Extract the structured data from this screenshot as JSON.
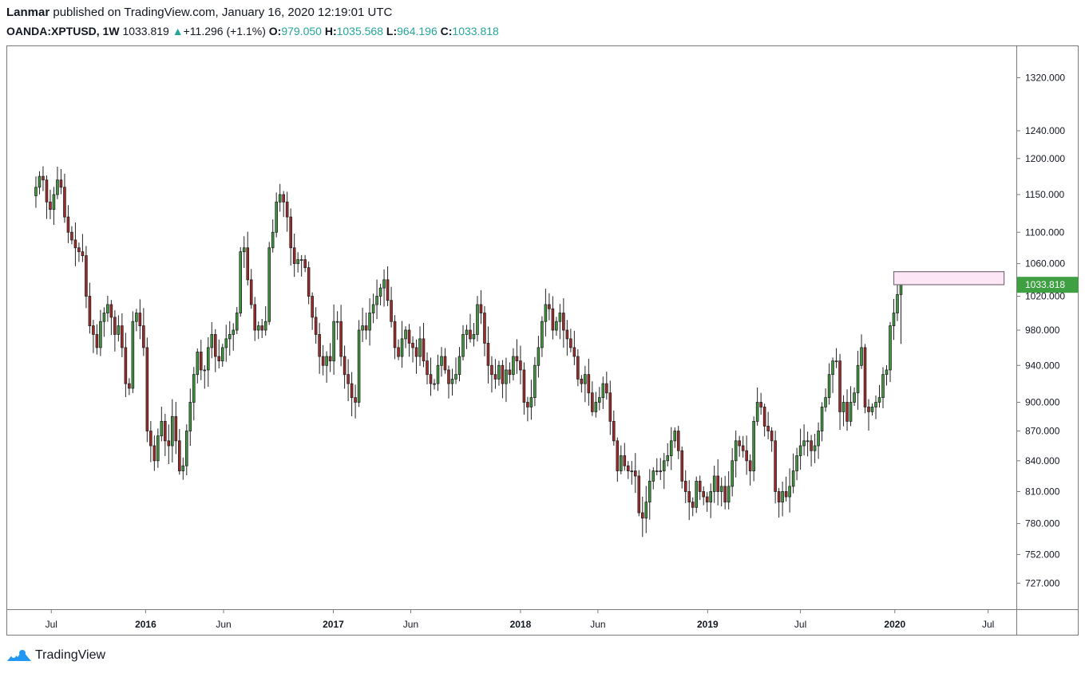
{
  "header": {
    "author": "Lanmar",
    "published_text": "published on TradingView.com, January 16, 2020 12:19:01 UTC",
    "symbol": "OANDA:XPTUSD, 1W",
    "last": "1033.819",
    "change": "+11.296 (+1.1%)",
    "open_label": "O:",
    "open": "979.050",
    "high_label": "H:",
    "high": "1035.568",
    "low_label": "L:",
    "low": "964.196",
    "close_label": "C:",
    "close": "1033.818"
  },
  "footer": {
    "brand": "TradingView"
  },
  "colors": {
    "up": "#26a69a",
    "candle_up": "#3f9a3f",
    "candle_down": "#a62a2a",
    "price_tag": "#3ea043",
    "zone_fill": "#fde7f7",
    "zone_stroke": "#7b6b7b"
  },
  "chart_data": {
    "type": "candlestick",
    "symbol": "OANDA:XPTUSD",
    "interval": "1W",
    "y_scale": "log",
    "ylim": [
      705,
      1370
    ],
    "y_ticks": [
      "1320.000",
      "1240.000",
      "1200.000",
      "1150.000",
      "1100.000",
      "1060.000",
      "1020.000",
      "980.000",
      "940.000",
      "900.000",
      "870.000",
      "840.000",
      "810.000",
      "780.000",
      "752.000",
      "727.000"
    ],
    "x_ticks": [
      {
        "label": "Jul",
        "date": "2015-07-01",
        "year": false
      },
      {
        "label": "2016",
        "date": "2016-01-01",
        "year": true
      },
      {
        "label": "Jun",
        "date": "2016-06-01",
        "year": false
      },
      {
        "label": "2017",
        "date": "2017-01-01",
        "year": true
      },
      {
        "label": "Jun",
        "date": "2017-06-01",
        "year": false
      },
      {
        "label": "2018",
        "date": "2018-01-01",
        "year": true
      },
      {
        "label": "Jun",
        "date": "2018-06-01",
        "year": false
      },
      {
        "label": "2019",
        "date": "2019-01-01",
        "year": true
      },
      {
        "label": "Jul",
        "date": "2019-07-01",
        "year": false
      },
      {
        "label": "2020",
        "date": "2020-01-01",
        "year": true
      },
      {
        "label": "Jul",
        "date": "2020-07-01",
        "year": false
      }
    ],
    "last_price_label": "1033.818",
    "last_price": 1033.818,
    "zone": {
      "price_low": 1034,
      "price_high": 1050,
      "date_start": "2019-12-30",
      "date_end": "2020-08-01"
    },
    "x_start": "2015-04-06",
    "x_end": "2020-08-25",
    "closes": [
      1160,
      1175,
      1170,
      1140,
      1130,
      1150,
      1170,
      1160,
      1120,
      1100,
      1090,
      1080,
      1075,
      1070,
      1020,
      985,
      975,
      960,
      990,
      1000,
      1010,
      995,
      975,
      985,
      960,
      920,
      915,
      990,
      1000,
      985,
      960,
      870,
      855,
      840,
      865,
      880,
      860,
      855,
      885,
      860,
      830,
      835,
      870,
      900,
      930,
      955,
      935,
      935,
      960,
      975,
      950,
      945,
      960,
      970,
      975,
      980,
      1000,
      1075,
      1080,
      1040,
      1010,
      980,
      985,
      980,
      990,
      1080,
      1100,
      1140,
      1150,
      1140,
      1120,
      1080,
      1060,
      1065,
      1065,
      1055,
      1020,
      995,
      975,
      950,
      940,
      950,
      945,
      990,
      990,
      950,
      930,
      920,
      905,
      900,
      980,
      985,
      980,
      1000,
      1010,
      1020,
      1030,
      1040,
      1015,
      990,
      960,
      950,
      970,
      980,
      965,
      960,
      950,
      970,
      945,
      930,
      920,
      920,
      940,
      950,
      935,
      920,
      925,
      930,
      950,
      975,
      980,
      970,
      975,
      1010,
      1000,
      965,
      940,
      930,
      925,
      940,
      920,
      935,
      930,
      950,
      945,
      935,
      900,
      895,
      905,
      940,
      960,
      990,
      1010,
      1005,
      980,
      990,
      1000,
      980,
      970,
      960,
      950,
      925,
      920,
      930,
      910,
      890,
      900,
      905,
      920,
      910,
      880,
      860,
      830,
      845,
      835,
      830,
      830,
      825,
      790,
      785,
      800,
      820,
      830,
      830,
      830,
      840,
      845,
      860,
      870,
      850,
      820,
      810,
      800,
      795,
      820,
      810,
      805,
      800,
      810,
      825,
      810,
      815,
      800,
      815,
      840,
      860,
      855,
      850,
      840,
      830,
      880,
      900,
      895,
      875,
      870,
      860,
      810,
      800,
      810,
      805,
      815,
      830,
      845,
      855,
      860,
      860,
      850,
      855,
      870,
      895,
      905,
      930,
      945,
      945,
      890,
      900,
      880,
      900,
      910,
      940,
      960,
      895,
      890,
      895,
      900,
      905,
      930,
      935,
      985,
      1000,
      1022,
      1034
    ]
  }
}
